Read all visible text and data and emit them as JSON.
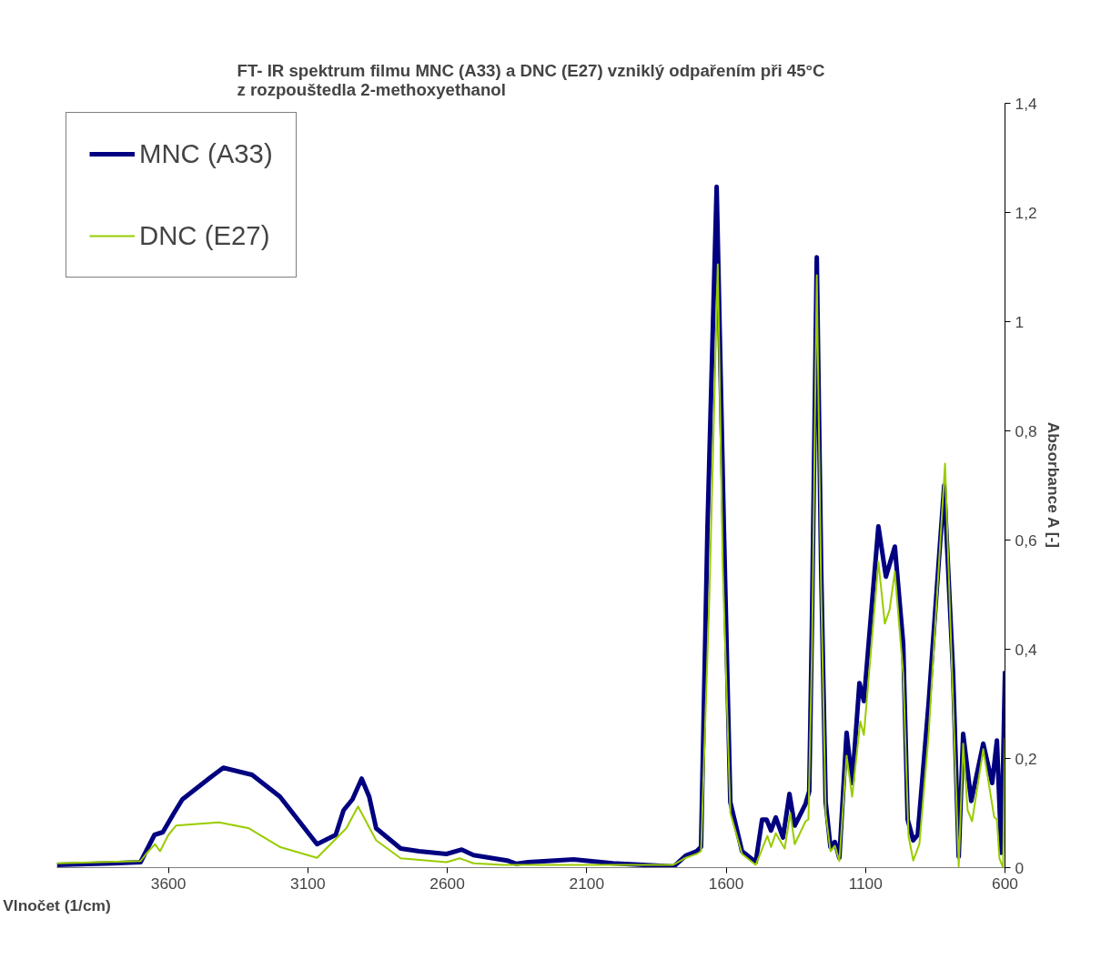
{
  "chart_data": {
    "type": "line",
    "title": "FT- IR spektrum filmu MNC (A33) a DNC (E27) vzniklý odpařením při 45°C\nz rozpouštedla 2-methoxyethanol",
    "xlabel": "Vlnočet (1/cm)",
    "ylabel": "Absorbance A [-]",
    "xlim": [
      4000,
      600
    ],
    "xticks": [
      3600,
      3100,
      2600,
      2100,
      1600,
      1100,
      600
    ],
    "ylim": [
      0,
      1.4
    ],
    "yticks": [
      0,
      {
        "value": 0.2,
        "label": "0,2"
      },
      {
        "value": 0.4,
        "label": "0,4"
      },
      {
        "value": 0.6,
        "label": "0,6"
      },
      {
        "value": 0.8,
        "label": "0,8"
      },
      1,
      {
        "value": 1.2,
        "label": "1,2"
      },
      {
        "value": 1.4,
        "label": "1,4"
      }
    ],
    "grid": false,
    "legend": "top left",
    "line_style": "solid",
    "marker": "none",
    "series": [
      {
        "name": "MNC (A33)",
        "color": "#000080",
        "x": [
          4000,
          3800,
          3700,
          3680,
          3650,
          3620,
          3580,
          3550,
          3500,
          3450,
          3403,
          3300,
          3200,
          3067,
          3000,
          2972,
          2940,
          2907,
          2880,
          2855,
          2767,
          2701,
          2603,
          2548,
          2506,
          2385,
          2352,
          2310,
          2147,
          2006,
          1788,
          1745,
          1706,
          1690,
          1667,
          1634,
          1608,
          1585,
          1543,
          1494,
          1471,
          1455,
          1439,
          1422,
          1396,
          1373,
          1354,
          1315,
          1302,
          1292,
          1275,
          1259,
          1243,
          1226,
          1210,
          1194,
          1168,
          1148,
          1122,
          1106,
          1054,
          1027,
          995,
          965,
          949,
          929,
          913,
          874,
          818,
          786,
          766,
          750,
          721,
          678,
          646,
          629,
          613,
          600
        ],
        "values": [
          0.005,
          0.008,
          0.01,
          0.03,
          0.06,
          0.065,
          0.1,
          0.125,
          0.145,
          0.165,
          0.183,
          0.17,
          0.13,
          0.043,
          0.06,
          0.105,
          0.125,
          0.163,
          0.13,
          0.072,
          0.035,
          0.03,
          0.025,
          0.033,
          0.023,
          0.013,
          0.007,
          0.01,
          0.015,
          0.008,
          0.002,
          0.022,
          0.03,
          0.038,
          0.62,
          1.247,
          0.62,
          0.12,
          0.03,
          0.01,
          0.088,
          0.088,
          0.068,
          0.092,
          0.055,
          0.135,
          0.077,
          0.117,
          0.14,
          0.455,
          1.118,
          0.54,
          0.12,
          0.038,
          0.047,
          0.018,
          0.247,
          0.155,
          0.338,
          0.305,
          0.625,
          0.533,
          0.588,
          0.41,
          0.088,
          0.05,
          0.06,
          0.3,
          0.7,
          0.355,
          0.02,
          0.245,
          0.122,
          0.227,
          0.155,
          0.233,
          0.027,
          0.36
        ]
      },
      {
        "name": "DNC (E27)",
        "color": "#99cc00",
        "x": [
          4000,
          3700,
          3680,
          3648,
          3630,
          3600,
          3573,
          3419,
          3311,
          3201,
          3067,
          2962,
          2920,
          2855,
          2767,
          2603,
          2555,
          2506,
          2400,
          1790,
          1745,
          1706,
          1690,
          1660,
          1630,
          1612,
          1585,
          1543,
          1494,
          1452,
          1439,
          1422,
          1390,
          1370,
          1354,
          1315,
          1305,
          1292,
          1275,
          1259,
          1243,
          1226,
          1210,
          1194,
          1168,
          1148,
          1119,
          1106,
          1054,
          1031,
          1014,
          995,
          965,
          946,
          929,
          907,
          874,
          815,
          786,
          766,
          750,
          734,
          718,
          678,
          639,
          629,
          620,
          607,
          600
        ],
        "values": [
          0.008,
          0.012,
          0.025,
          0.043,
          0.03,
          0.06,
          0.077,
          0.083,
          0.072,
          0.038,
          0.018,
          0.072,
          0.112,
          0.05,
          0.017,
          0.01,
          0.017,
          0.008,
          0.005,
          0.005,
          0.018,
          0.025,
          0.03,
          0.5,
          1.105,
          0.55,
          0.1,
          0.025,
          0.005,
          0.058,
          0.038,
          0.063,
          0.035,
          0.1,
          0.043,
          0.085,
          0.088,
          0.4,
          1.085,
          0.5,
          0.1,
          0.03,
          0.04,
          0.012,
          0.205,
          0.13,
          0.268,
          0.243,
          0.56,
          0.447,
          0.472,
          0.542,
          0.355,
          0.058,
          0.013,
          0.043,
          0.243,
          0.74,
          0.3,
          0.002,
          0.227,
          0.105,
          0.085,
          0.217,
          0.093,
          0.088,
          0.017,
          0.0,
          0.238
        ]
      }
    ]
  }
}
